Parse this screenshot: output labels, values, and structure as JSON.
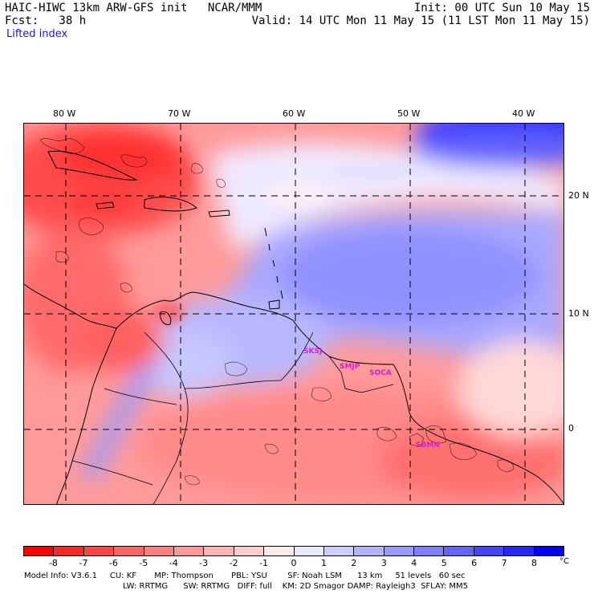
{
  "header": {
    "title": "HAIC-HIWC 13km ARW-GFS init   NCAR/MMM",
    "init": "Init: 00 UTC Sun 10 May 15",
    "fcst": "Fcst:   38 h",
    "valid": "Valid: 14 UTC Mon 11 May 15 (11 LST Mon 11 May 15)",
    "field": "Lifted index"
  },
  "map": {
    "lon_labels": [
      "80 W",
      "70 W",
      "60 W",
      "50 W",
      "40 W"
    ],
    "lat_labels": [
      "20 N",
      "10 N",
      "0"
    ],
    "stations": [
      "SKSJ",
      "SMJP",
      "SOCA",
      "SBMN"
    ]
  },
  "legend": {
    "ticks": [
      "-8",
      "-7",
      "-6",
      "-5",
      "-4",
      "-3",
      "-2",
      "-1",
      "0",
      "1",
      "2",
      "3",
      "4",
      "5",
      "6",
      "7",
      "8"
    ],
    "unit": "°C",
    "colors": [
      "#ff0000",
      "#ff2626",
      "#ff4545",
      "#ff6464",
      "#ff7f7f",
      "#ff9999",
      "#ffb3b3",
      "#ffcccc",
      "#ffeaea",
      "#eaeaff",
      "#ccccff",
      "#b3b3ff",
      "#9999ff",
      "#7f7fff",
      "#6464ff",
      "#4545ff",
      "#2626ff",
      "#0000ff"
    ]
  },
  "footer": {
    "line1": "Model Info: V3.6.1     CU: KF       MP: Thompson       PBL: YSU        SF: Noah LSM      13 km     51 levels   60 sec",
    "line2": "LW: RRTMG      SW: RRTMG   DIFF: full    KM: 2D Smagor DAMP: Rayleigh3  SFLAY: MM5"
  }
}
